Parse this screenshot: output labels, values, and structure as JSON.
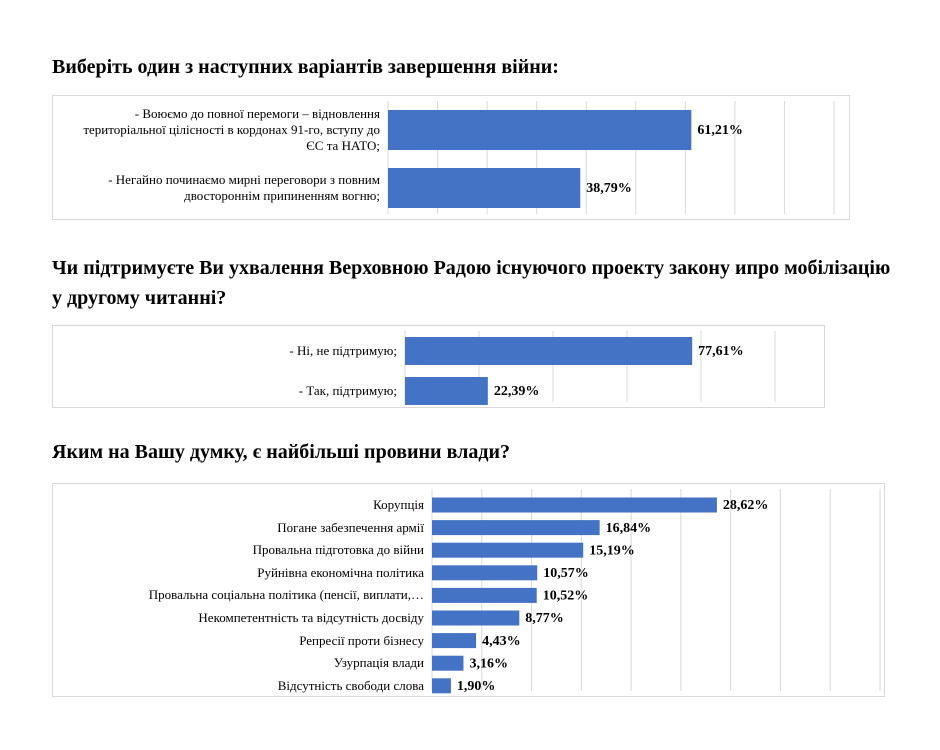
{
  "chart_data": [
    {
      "type": "barh",
      "title": "Виберіть один з наступних варіантів завершення війни:",
      "categories": [
        "- Воюємо до повної перемоги – відновлення територіальної цілісності в кордонах 91-го, вступу до ЄС та НАТО;",
        "- Негайно починаємо мирні переговори з повним двостороннім припиненням вогню;"
      ],
      "values": [
        61.21,
        38.79
      ],
      "value_labels": [
        "61,21%",
        "38,79%"
      ],
      "color": "#4472c4",
      "xlim": [
        0,
        90
      ],
      "xticks": [
        0,
        10,
        20,
        30,
        40,
        50,
        60,
        70,
        80,
        90
      ],
      "grid": true
    },
    {
      "type": "barh",
      "title": "Чи підтримуєте Ви ухвалення Верховною Радою існуючого проекту закону ипро мобілізацію у другому читанні?",
      "categories": [
        "- Ні, не підтримую;",
        "- Так, підтримую;"
      ],
      "values": [
        77.61,
        22.39
      ],
      "value_labels": [
        "77,61%",
        "22,39%"
      ],
      "color": "#4472c4",
      "xlim": [
        0,
        100
      ],
      "xticks": [
        0,
        20,
        40,
        60,
        80,
        100
      ],
      "grid": true
    },
    {
      "type": "barh",
      "title": "Яким на Вашу думку, є найбільші провини влади?",
      "categories": [
        "Корупція",
        "Погане забезпечення армії",
        "Провальна підготовка до війни",
        "Руйнівна економічна політика",
        "Провальна соціальна політика (пенсії, виплати,…",
        "Некомпетентність та відсутність досвіду",
        "Репресії проти бізнесу",
        "Узурпація влади",
        "Відсутність свободи слова"
      ],
      "values": [
        28.62,
        16.84,
        15.19,
        10.57,
        10.52,
        8.77,
        4.43,
        3.16,
        1.9
      ],
      "value_labels": [
        "28,62%",
        "16,84%",
        "15,19%",
        "10,57%",
        "10,52%",
        "8,77%",
        "4,43%",
        "3,16%",
        "1,90%"
      ],
      "color": "#4472c4",
      "xlim": [
        0,
        45
      ],
      "xticks": [
        0,
        5,
        10,
        15,
        20,
        25,
        30,
        35,
        40,
        45
      ],
      "grid": true
    }
  ]
}
